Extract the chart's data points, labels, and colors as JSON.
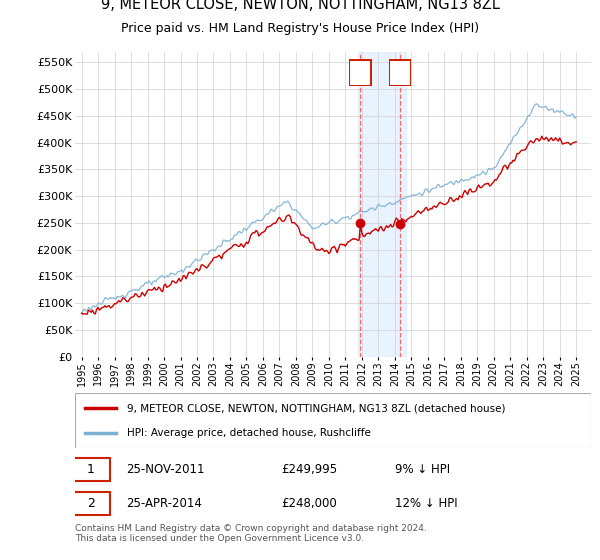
{
  "title": "9, METEOR CLOSE, NEWTON, NOTTINGHAM, NG13 8ZL",
  "subtitle": "Price paid vs. HM Land Registry's House Price Index (HPI)",
  "property_label": "9, METEOR CLOSE, NEWTON, NOTTINGHAM, NG13 8ZL (detached house)",
  "hpi_label": "HPI: Average price, detached house, Rushcliffe",
  "transaction1_date": "25-NOV-2011",
  "transaction1_price": "£249,995",
  "transaction1_hpi": "9% ↓ HPI",
  "transaction2_date": "25-APR-2014",
  "transaction2_price": "£248,000",
  "transaction2_hpi": "12% ↓ HPI",
  "footer": "Contains HM Land Registry data © Crown copyright and database right 2024.\nThis data is licensed under the Open Government Licence v3.0.",
  "ylim": [
    0,
    570000
  ],
  "yticks": [
    0,
    50000,
    100000,
    150000,
    200000,
    250000,
    300000,
    350000,
    400000,
    450000,
    500000,
    550000
  ],
  "ytick_labels": [
    "£0",
    "£50K",
    "£100K",
    "£150K",
    "£200K",
    "£250K",
    "£300K",
    "£350K",
    "£400K",
    "£450K",
    "£500K",
    "£550K"
  ],
  "line_color_property": "#cc0000",
  "line_color_hpi": "#7ab0d4",
  "transaction1_x": 2011.9,
  "transaction2_x": 2014.32,
  "bg_shade_x1": 2011.75,
  "bg_shade_x2": 2014.65,
  "xmin": 1994.6,
  "xmax": 2025.9
}
